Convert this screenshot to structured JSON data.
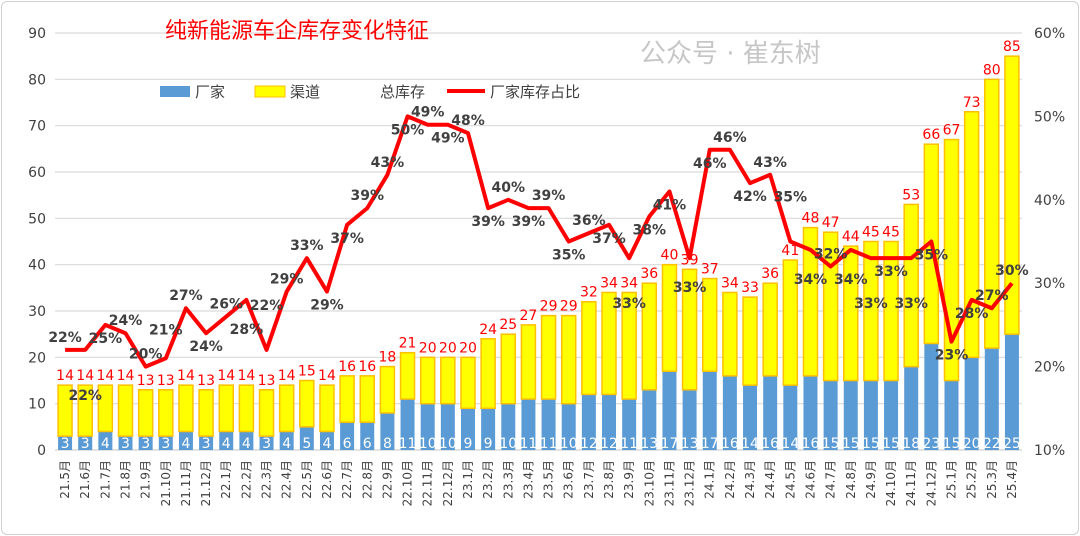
{
  "chart_data": {
    "type": "bar+line",
    "title": "纯新能源车企库存变化特征",
    "categories": [
      "21.5月",
      "21.6月",
      "21.7月",
      "21.8月",
      "21.9月",
      "21.10月",
      "21.11月",
      "21.12月",
      "22.1月",
      "22.2月",
      "22.3月",
      "22.4月",
      "22.5月",
      "22.6月",
      "22.7月",
      "22.8月",
      "22.9月",
      "22.10月",
      "22.11月",
      "22.12月",
      "23.1月",
      "23.2月",
      "23.3月",
      "23.4月",
      "23.5月",
      "23.6月",
      "23.7月",
      "23.8月",
      "23.9月",
      "23.10月",
      "23.11月",
      "23.12月",
      "24.1月",
      "24.2月",
      "24.3月",
      "24.4月",
      "24.5月",
      "24.6月",
      "24.7月",
      "24.8月",
      "24.9月",
      "24.10月",
      "24.11月",
      "24.12月",
      "25.1月",
      "25.2月",
      "25.3月",
      "25.4月"
    ],
    "series": [
      {
        "name": "厂家",
        "type": "stacked-bar",
        "axis": "left",
        "color": "#5B9BD5",
        "values": [
          3,
          3,
          4,
          3,
          3,
          3,
          4,
          3,
          4,
          4,
          3,
          4,
          5,
          4,
          6,
          6,
          8,
          11,
          10,
          10,
          9,
          9,
          10,
          11,
          11,
          10,
          12,
          12,
          11,
          13,
          17,
          13,
          17,
          16,
          14,
          16,
          14,
          16,
          15,
          15,
          15,
          15,
          18,
          23,
          15,
          20,
          22,
          25
        ]
      },
      {
        "name": "渠道",
        "type": "stacked-bar",
        "axis": "left",
        "color": "#FFFF00",
        "border": "#FFC000",
        "values": [
          11,
          11,
          10,
          11,
          10,
          10,
          10,
          10,
          10,
          10,
          10,
          10,
          10,
          10,
          10,
          10,
          10,
          10,
          10,
          10,
          11,
          15,
          15,
          16,
          18,
          19,
          20,
          22,
          23,
          23,
          23,
          26,
          20,
          18,
          19,
          20,
          27,
          32,
          32,
          29,
          30,
          30,
          35,
          43,
          52,
          53,
          58,
          60
        ]
      },
      {
        "name": "总库存",
        "type": "label",
        "color": "#FF0000",
        "values": [
          14,
          14,
          14,
          14,
          13,
          13,
          14,
          13,
          14,
          14,
          13,
          14,
          15,
          14,
          16,
          16,
          18,
          21,
          20,
          20,
          20,
          24,
          25,
          27,
          29,
          29,
          32,
          34,
          34,
          36,
          40,
          39,
          37,
          34,
          33,
          36,
          41,
          48,
          47,
          44,
          45,
          45,
          53,
          66,
          67,
          73,
          80,
          85
        ]
      },
      {
        "name": "厂家库存占比",
        "type": "line",
        "axis": "right",
        "color": "#FF0000",
        "values": [
          22,
          22,
          25,
          24,
          20,
          21,
          27,
          24,
          26,
          28,
          22,
          29,
          33,
          29,
          37,
          39,
          43,
          50,
          49,
          49,
          48,
          39,
          40,
          39,
          39,
          35,
          36,
          37,
          33,
          38,
          41,
          33,
          46,
          46,
          42,
          43,
          35,
          34,
          32,
          34,
          33,
          33,
          33,
          35,
          23,
          28,
          27,
          30
        ]
      }
    ],
    "left_axis": {
      "min": 0,
      "max": 90,
      "ticks": [
        0,
        10,
        20,
        30,
        40,
        50,
        60,
        70,
        80,
        90
      ]
    },
    "right_axis": {
      "min": 10,
      "max": 60,
      "unit": "%",
      "ticks": [
        "10%",
        "20%",
        "30%",
        "40%",
        "50%",
        "60%"
      ]
    },
    "grid": true,
    "legend": {
      "placement": "top-left",
      "entries": [
        "厂家",
        "渠道",
        "总库存",
        "厂家库存占比"
      ]
    },
    "colors": {
      "title": "#FF0000",
      "total_label": "#FF0000",
      "pct_label": "#404040",
      "grid": "#D9D9D9"
    }
  },
  "watermark": "公众号 · 崔东树"
}
